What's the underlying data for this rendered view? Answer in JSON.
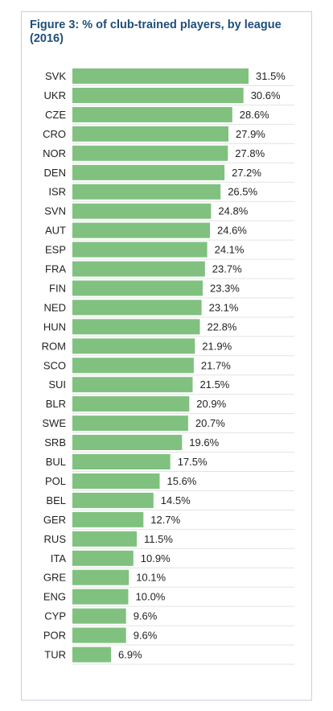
{
  "title": "Figure 3: % of club-trained players, by league (2016)",
  "colors": {
    "bar": "#80c17f",
    "title": "#1f4e79",
    "separator": "#e3e3e3"
  },
  "chart_data": {
    "type": "bar",
    "orientation": "horizontal",
    "title": "Figure 3: % of club-trained players, by league (2016)",
    "categories": [
      "SVK",
      "UKR",
      "CZE",
      "CRO",
      "NOR",
      "DEN",
      "ISR",
      "SVN",
      "AUT",
      "ESP",
      "FRA",
      "FIN",
      "NED",
      "HUN",
      "ROM",
      "SCO",
      "SUI",
      "BLR",
      "SWE",
      "SRB",
      "BUL",
      "POL",
      "BEL",
      "GER",
      "RUS",
      "ITA",
      "GRE",
      "ENG",
      "CYP",
      "POR",
      "TUR"
    ],
    "values": [
      31.5,
      30.6,
      28.6,
      27.9,
      27.8,
      27.2,
      26.5,
      24.8,
      24.6,
      24.1,
      23.7,
      23.3,
      23.1,
      22.8,
      21.9,
      21.7,
      21.5,
      20.9,
      20.7,
      19.6,
      17.5,
      15.6,
      14.5,
      12.7,
      11.5,
      10.9,
      10.1,
      10.0,
      9.6,
      9.6,
      6.9
    ],
    "value_labels": [
      "31.5%",
      "30.6%",
      "28.6%",
      "27.9%",
      "27.8%",
      "27.2%",
      "26.5%",
      "24.8%",
      "24.6%",
      "24.1%",
      "23.7%",
      "23.3%",
      "23.1%",
      "22.8%",
      "21.9%",
      "21.7%",
      "21.5%",
      "20.9%",
      "20.7%",
      "19.6%",
      "17.5%",
      "15.6%",
      "14.5%",
      "12.7%",
      "11.5%",
      "10.9%",
      "10.1%",
      "10.0%",
      "9.6%",
      "9.6%",
      "6.9%"
    ],
    "xlim": [
      0,
      31.5
    ],
    "grid": false,
    "legend": "none"
  }
}
